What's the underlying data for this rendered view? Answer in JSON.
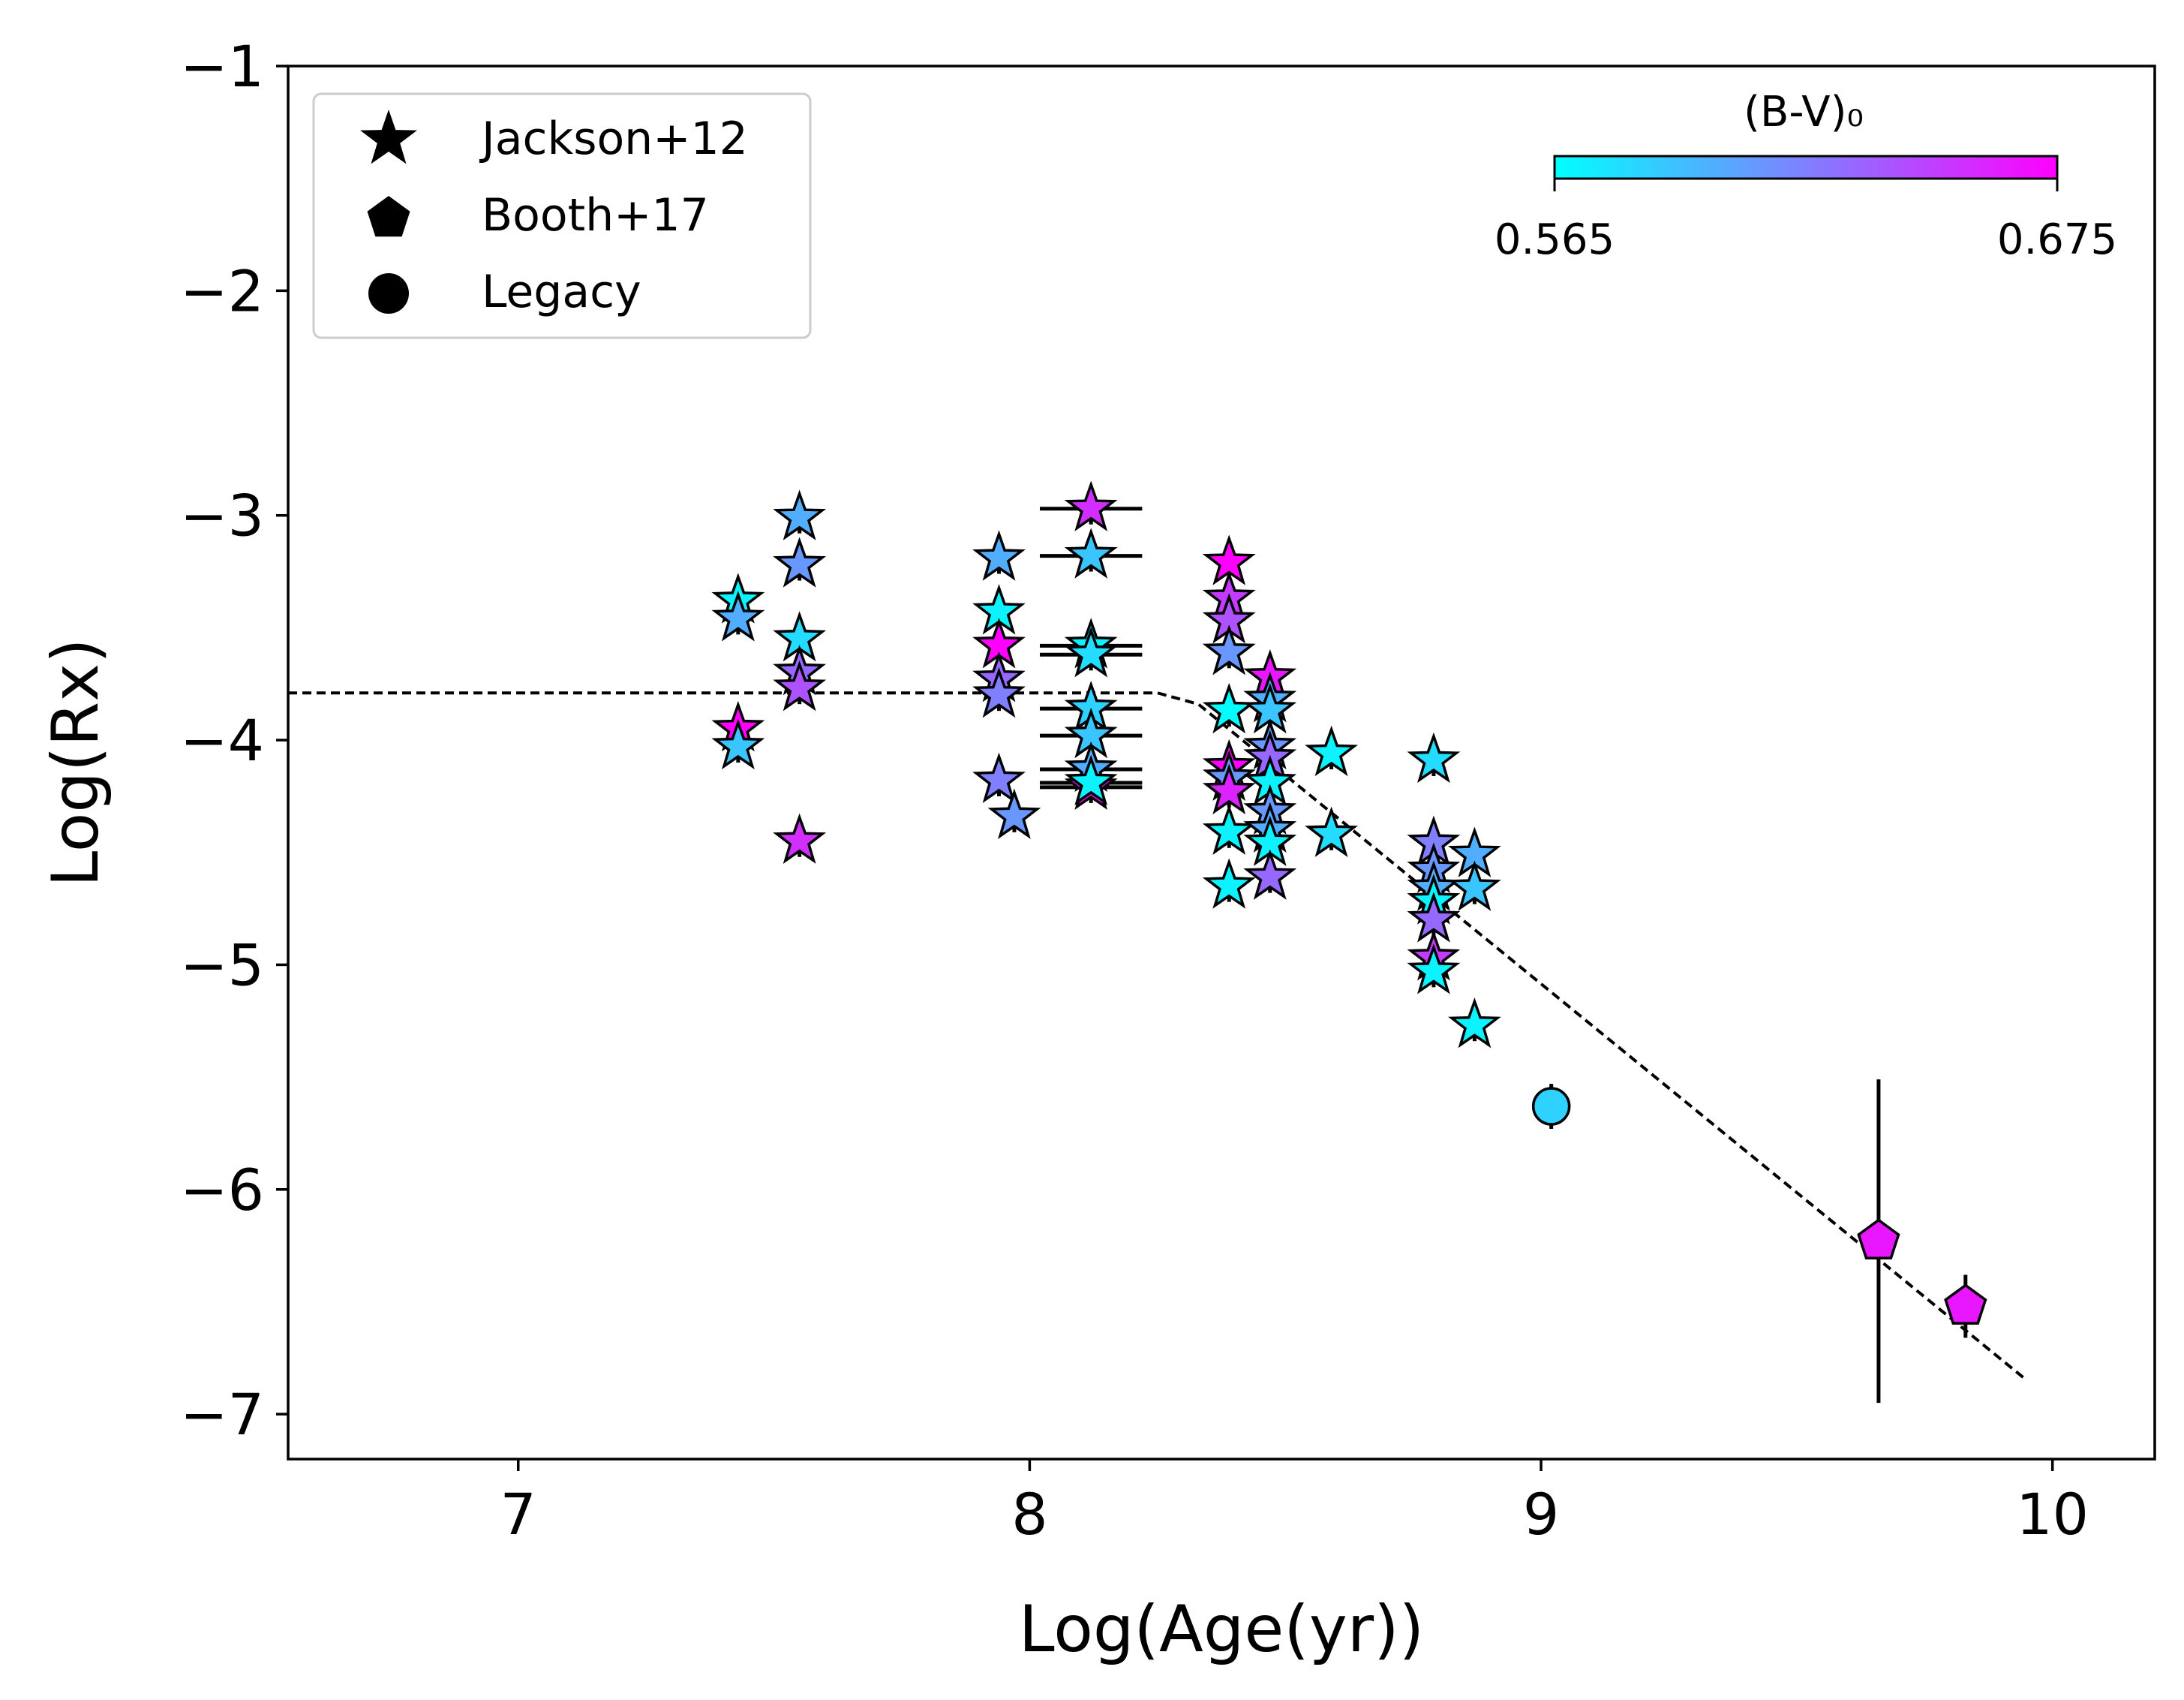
{
  "chart_data": {
    "type": "scatter",
    "xlabel": "Log(Age(yr))",
    "ylabel": "Log(Rx)",
    "xlim": [
      6.55,
      10.2
    ],
    "ylim": [
      -7.2,
      -1
    ],
    "xticks": [
      7,
      8,
      9,
      10
    ],
    "yticks": [
      -1,
      -2,
      -3,
      -4,
      -5,
      -6,
      -7
    ],
    "xtick_labels": [
      "7",
      "8",
      "9",
      "10"
    ],
    "ytick_labels": [
      "−1",
      "−2",
      "−3",
      "−4",
      "−5",
      "−6",
      "−7"
    ],
    "grid": false,
    "legend": {
      "position": "top-left",
      "entries": [
        {
          "label": "Jackson+12",
          "marker": "star"
        },
        {
          "label": "Booth+17",
          "marker": "pentagon"
        },
        {
          "label": "Legacy",
          "marker": "circle"
        }
      ]
    },
    "colorbar": {
      "label": "(B-V)₀",
      "min": 0.565,
      "max": 0.675,
      "min_label": "0.565",
      "max_label": "0.675",
      "cmap": [
        "#00ffff",
        "#ff00ff"
      ],
      "position": "top-right"
    },
    "trend_line": {
      "style": "dashed",
      "x": [
        6.55,
        8.25,
        8.33,
        9.95
      ],
      "y": [
        -3.79,
        -3.79,
        -3.84,
        -6.85
      ]
    },
    "series": [
      {
        "name": "Jackson+12",
        "marker": "star",
        "points": [
          {
            "x": 7.43,
            "y": -3.38,
            "bv": 0.57
          },
          {
            "x": 7.43,
            "y": -3.46,
            "bv": 0.6
          },
          {
            "x": 7.43,
            "y": -3.95,
            "bv": 0.675
          },
          {
            "x": 7.43,
            "y": -4.03,
            "bv": 0.59
          },
          {
            "x": 7.55,
            "y": -3.01,
            "bv": 0.6
          },
          {
            "x": 7.55,
            "y": -3.22,
            "bv": 0.61
          },
          {
            "x": 7.55,
            "y": -3.55,
            "bv": 0.58
          },
          {
            "x": 7.55,
            "y": -3.7,
            "bv": 0.63
          },
          {
            "x": 7.55,
            "y": -3.77,
            "bv": 0.64
          },
          {
            "x": 7.55,
            "y": -4.45,
            "bv": 0.655
          },
          {
            "x": 7.94,
            "y": -3.19,
            "bv": 0.6
          },
          {
            "x": 7.94,
            "y": -3.43,
            "bv": 0.57
          },
          {
            "x": 7.94,
            "y": -3.58,
            "bv": 0.675
          },
          {
            "x": 7.94,
            "y": -3.73,
            "bv": 0.63
          },
          {
            "x": 7.94,
            "y": -3.8,
            "bv": 0.62
          },
          {
            "x": 7.94,
            "y": -4.18,
            "bv": 0.62
          },
          {
            "x": 7.97,
            "y": -4.34,
            "bv": 0.61
          },
          {
            "x": 8.12,
            "y": -2.97,
            "bv": 0.655,
            "xerr": 0.1
          },
          {
            "x": 8.12,
            "y": -3.18,
            "bv": 0.59,
            "xerr": 0.1
          },
          {
            "x": 8.12,
            "y": -3.58,
            "bv": 0.57,
            "xerr": 0.1
          },
          {
            "x": 8.12,
            "y": -3.62,
            "bv": 0.58,
            "xerr": 0.1
          },
          {
            "x": 8.12,
            "y": -3.86,
            "bv": 0.585,
            "xerr": 0.1
          },
          {
            "x": 8.12,
            "y": -3.98,
            "bv": 0.59,
            "xerr": 0.1
          },
          {
            "x": 8.12,
            "y": -4.13,
            "bv": 0.6,
            "xerr": 0.1
          },
          {
            "x": 8.12,
            "y": -4.21,
            "bv": 0.675,
            "xerr": 0.1
          },
          {
            "x": 8.12,
            "y": -4.19,
            "bv": 0.57,
            "xerr": 0.1
          },
          {
            "x": 8.39,
            "y": -3.21,
            "bv": 0.675
          },
          {
            "x": 8.39,
            "y": -3.37,
            "bv": 0.65
          },
          {
            "x": 8.39,
            "y": -3.47,
            "bv": 0.64
          },
          {
            "x": 8.39,
            "y": -3.61,
            "bv": 0.61
          },
          {
            "x": 8.39,
            "y": -3.87,
            "bv": 0.565
          },
          {
            "x": 8.39,
            "y": -4.12,
            "bv": 0.675
          },
          {
            "x": 8.39,
            "y": -4.17,
            "bv": 0.61
          },
          {
            "x": 8.39,
            "y": -4.23,
            "bv": 0.66
          },
          {
            "x": 8.39,
            "y": -4.41,
            "bv": 0.57
          },
          {
            "x": 8.39,
            "y": -4.65,
            "bv": 0.57
          },
          {
            "x": 8.47,
            "y": -3.72,
            "bv": 0.665
          },
          {
            "x": 8.47,
            "y": -3.82,
            "bv": 0.6
          },
          {
            "x": 8.47,
            "y": -3.87,
            "bv": 0.59
          },
          {
            "x": 8.47,
            "y": -4.03,
            "bv": 0.61
          },
          {
            "x": 8.47,
            "y": -4.08,
            "bv": 0.63
          },
          {
            "x": 8.47,
            "y": -4.19,
            "bv": 0.57
          },
          {
            "x": 8.47,
            "y": -4.32,
            "bv": 0.61
          },
          {
            "x": 8.47,
            "y": -4.4,
            "bv": 0.6
          },
          {
            "x": 8.47,
            "y": -4.46,
            "bv": 0.57
          },
          {
            "x": 8.47,
            "y": -4.61,
            "bv": 0.63
          },
          {
            "x": 8.59,
            "y": -4.06,
            "bv": 0.57
          },
          {
            "x": 8.59,
            "y": -4.42,
            "bv": 0.58
          },
          {
            "x": 8.79,
            "y": -4.09,
            "bv": 0.58
          },
          {
            "x": 8.79,
            "y": -4.46,
            "bv": 0.62
          },
          {
            "x": 8.79,
            "y": -4.58,
            "bv": 0.61
          },
          {
            "x": 8.79,
            "y": -4.66,
            "bv": 0.6
          },
          {
            "x": 8.79,
            "y": -4.72,
            "bv": 0.57
          },
          {
            "x": 8.79,
            "y": -4.8,
            "bv": 0.63
          },
          {
            "x": 8.79,
            "y": -4.97,
            "bv": 0.65
          },
          {
            "x": 8.79,
            "y": -5.03,
            "bv": 0.57
          },
          {
            "x": 8.87,
            "y": -4.51,
            "bv": 0.6
          },
          {
            "x": 8.87,
            "y": -4.66,
            "bv": 0.59
          },
          {
            "x": 8.87,
            "y": -5.27,
            "bv": 0.57
          }
        ]
      },
      {
        "name": "Booth+17",
        "marker": "pentagon",
        "points": [
          {
            "x": 9.66,
            "y": -6.23,
            "bv": 0.665,
            "yerr": 0.72
          },
          {
            "x": 9.83,
            "y": -6.52,
            "bv": 0.665,
            "yerr": 0.14
          }
        ]
      },
      {
        "name": "Legacy",
        "marker": "circle",
        "points": [
          {
            "x": 9.02,
            "y": -5.63,
            "bv": 0.585,
            "yerr": 0.1
          }
        ]
      }
    ]
  }
}
